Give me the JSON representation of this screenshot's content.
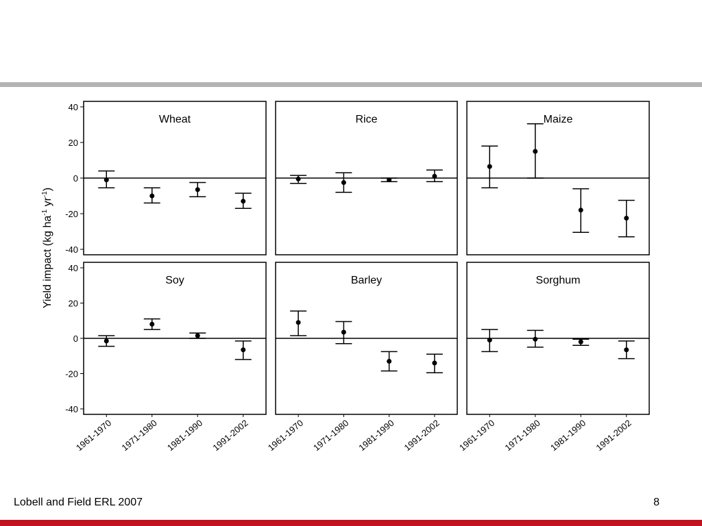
{
  "colors": {
    "top_rule": "#b3b3b3",
    "bottom_rule": "#c1121f"
  },
  "footer": {
    "citation": "Lobell and Field ERL 2007",
    "page_number": "8"
  },
  "chart_data": {
    "type": "scatter",
    "ylabel": "Yield impact (kg ha-1 yr-1)",
    "ylim": [
      -40,
      40
    ],
    "yticks": [
      40,
      20,
      0,
      -20,
      -40
    ],
    "categories": [
      "1961-1970",
      "1971-1980",
      "1981-1990",
      "1991-2002"
    ],
    "grid": false,
    "panels": [
      {
        "name": "Wheat",
        "values": [
          -1,
          -10,
          -6.5,
          -13
        ],
        "lower": [
          -5.5,
          -14,
          -10.5,
          -17
        ],
        "upper": [
          4,
          -5.5,
          -2.5,
          -8.5
        ]
      },
      {
        "name": "Rice",
        "values": [
          -0.5,
          -2.5,
          -1,
          1
        ],
        "lower": [
          -3,
          -8,
          -2,
          -2
        ],
        "upper": [
          1.5,
          3,
          0,
          4.5
        ]
      },
      {
        "name": "Maize",
        "values": [
          6.5,
          15,
          -18,
          -22.5
        ],
        "lower": [
          -5.5,
          0,
          -30.5,
          -33
        ],
        "upper": [
          18,
          30.5,
          -6,
          -12.5
        ]
      },
      {
        "name": "Soy",
        "values": [
          -1.5,
          8,
          1.5,
          -6.5
        ],
        "lower": [
          -4.5,
          5,
          0,
          -12
        ],
        "upper": [
          1.5,
          11,
          3,
          -1.5
        ]
      },
      {
        "name": "Barley",
        "values": [
          9,
          3.5,
          -13,
          -14
        ],
        "lower": [
          1.5,
          -3,
          -18.5,
          -19.5
        ],
        "upper": [
          15.5,
          9.5,
          -7.5,
          -9
        ]
      },
      {
        "name": "Sorghum",
        "values": [
          -1,
          -0.5,
          -2,
          -6.5
        ],
        "lower": [
          -7.5,
          -5,
          -4,
          -11.5
        ],
        "upper": [
          5,
          4.5,
          -0.5,
          -1.5
        ]
      }
    ]
  }
}
